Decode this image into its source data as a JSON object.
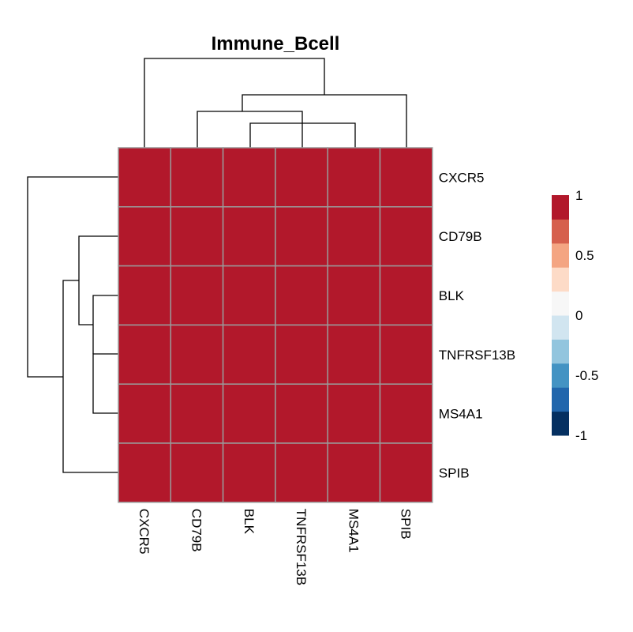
{
  "chart_data": {
    "type": "heatmap",
    "title": "Immune_Bcell",
    "columns": [
      "CXCR5",
      "CD79B",
      "BLK",
      "TNFRSF13B",
      "MS4A1",
      "SPIB"
    ],
    "rows": [
      "CXCR5",
      "CD79B",
      "BLK",
      "TNFRSF13B",
      "MS4A1",
      "SPIB"
    ],
    "values": [
      [
        1.0,
        0.8,
        0.8,
        0.8,
        0.8,
        0.8
      ],
      [
        0.8,
        1.0,
        1.0,
        1.0,
        1.0,
        0.8
      ],
      [
        0.8,
        1.0,
        1.0,
        1.0,
        1.0,
        0.8
      ],
      [
        0.8,
        1.0,
        1.0,
        1.0,
        1.0,
        0.8
      ],
      [
        0.8,
        1.0,
        1.0,
        1.0,
        1.0,
        1.0
      ],
      [
        0.8,
        0.8,
        0.8,
        0.8,
        1.0,
        1.0
      ]
    ],
    "color_scale": {
      "range": [
        -1,
        1
      ],
      "bins": [
        "#053061",
        "#2166ac",
        "#4393c3",
        "#92c5de",
        "#d1e5f0",
        "#f7f7f7",
        "#fddbc7",
        "#f4a582",
        "#d6604d",
        "#b2182b"
      ],
      "tick_labels": [
        "1",
        "0.5",
        "0",
        "-0.5",
        "-1"
      ],
      "tick_values": [
        1,
        0.5,
        0,
        -0.5,
        -1
      ]
    },
    "legend": "right",
    "clustering": "row and column dendrograms"
  }
}
